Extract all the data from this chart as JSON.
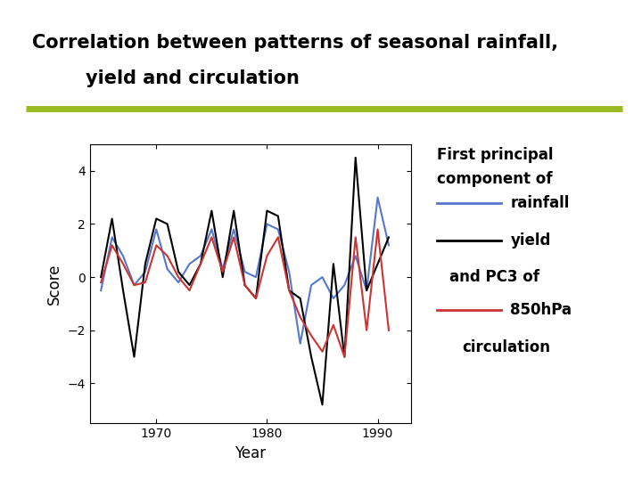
{
  "title_line1": "Correlation between patterns of seasonal rainfall,",
  "title_line2": "yield and circulation",
  "title_fontsize": 15,
  "title_color": "#000000",
  "separator_color": "#99bb22",
  "xlabel": "Year",
  "ylabel": "Score",
  "ylim": [
    -5.5,
    5.0
  ],
  "xlim": [
    1964,
    1993
  ],
  "xticks": [
    1970,
    1980,
    1990
  ],
  "yticks": [
    -4,
    -2,
    0,
    2,
    4
  ],
  "background_color": "#ffffff",
  "plot_bg_color": "#ffffff",
  "legend_title_line1": "First principal",
  "legend_title_line2": "component of",
  "rainfall_color": "#5577cc",
  "yield_color": "#000000",
  "circulation_color": "#cc3333",
  "years": [
    1965,
    1966,
    1967,
    1968,
    1969,
    1970,
    1971,
    1972,
    1973,
    1974,
    1975,
    1976,
    1977,
    1978,
    1979,
    1980,
    1981,
    1982,
    1983,
    1984,
    1985,
    1986,
    1987,
    1988,
    1989,
    1990,
    1991
  ],
  "rainfall": [
    -0.5,
    1.5,
    0.8,
    -0.3,
    0.2,
    1.8,
    0.3,
    -0.2,
    0.5,
    0.8,
    1.8,
    0.3,
    1.8,
    0.2,
    0.0,
    2.0,
    1.8,
    0.2,
    -2.5,
    -0.3,
    0.0,
    -0.8,
    -0.3,
    0.8,
    -0.5,
    3.0,
    1.2
  ],
  "yield": [
    0.0,
    2.2,
    -0.5,
    -3.0,
    0.5,
    2.2,
    2.0,
    0.2,
    -0.3,
    0.5,
    2.5,
    0.0,
    2.5,
    -0.3,
    -0.8,
    2.5,
    2.3,
    -0.5,
    -0.8,
    -3.0,
    -4.8,
    0.5,
    -3.0,
    4.5,
    -0.5,
    0.5,
    1.5
  ],
  "circulation": [
    -0.2,
    1.2,
    0.5,
    -0.3,
    -0.2,
    1.2,
    0.8,
    0.0,
    -0.5,
    0.5,
    1.5,
    0.2,
    1.5,
    -0.3,
    -0.8,
    0.8,
    1.5,
    -0.5,
    -1.5,
    -2.2,
    -2.8,
    -1.8,
    -3.0,
    1.5,
    -2.0,
    1.8,
    -2.0
  ]
}
